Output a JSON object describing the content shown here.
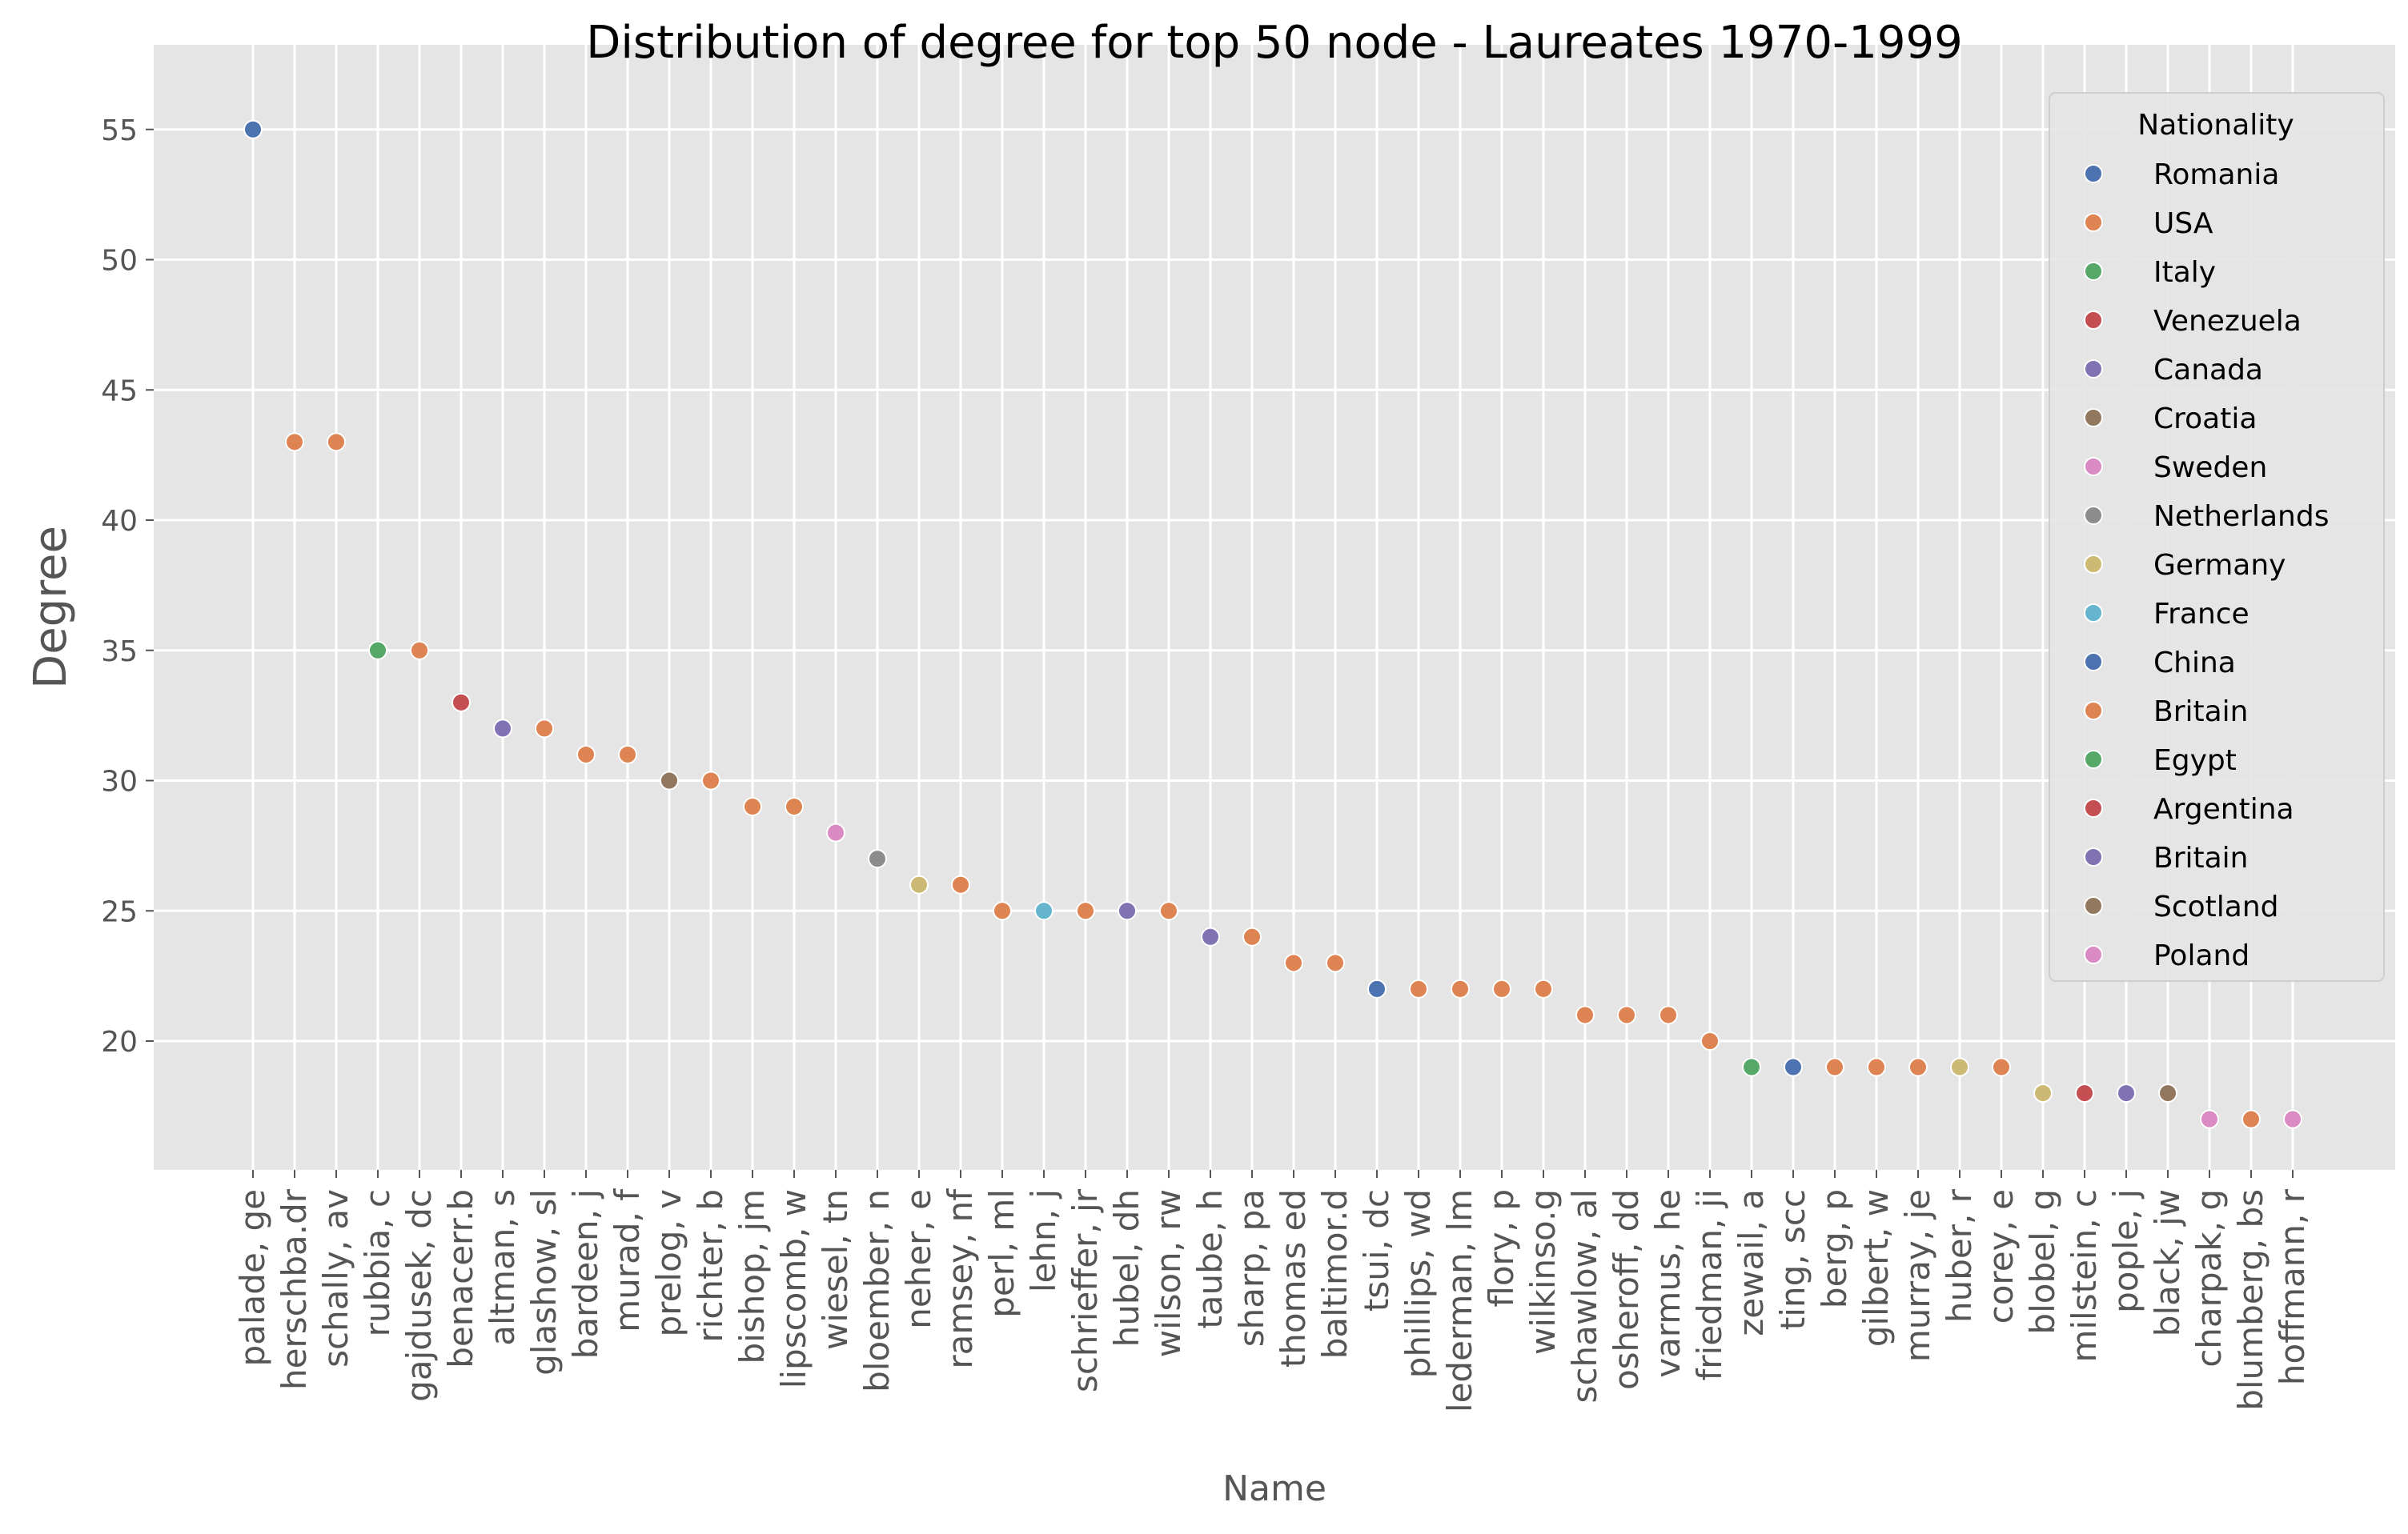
{
  "chart_data": {
    "type": "scatter",
    "title": "Distribution of degree for top 50 node - Laureates 1970-1999",
    "xlabel": "Name",
    "ylabel": "Degree",
    "ylim": [
      15,
      57
    ],
    "yticks": [
      20,
      25,
      30,
      35,
      40,
      45,
      50,
      55
    ],
    "grid": true,
    "legend": {
      "title": "Nationality",
      "placement": "top-right",
      "entries": [
        {
          "name": "Romania",
          "color": "#4c72b0"
        },
        {
          "name": "USA",
          "color": "#dd8452"
        },
        {
          "name": "Italy",
          "color": "#55a868"
        },
        {
          "name": "Venezuela",
          "color": "#c44e52"
        },
        {
          "name": "Canada",
          "color": "#8172b3"
        },
        {
          "name": "Croatia",
          "color": "#937860"
        },
        {
          "name": "Sweden",
          "color": "#da8bc3"
        },
        {
          "name": "Netherlands",
          "color": "#8c8c8c"
        },
        {
          "name": "Germany",
          "color": "#ccb974"
        },
        {
          "name": "France",
          "color": "#64b5cd"
        },
        {
          "name": "China",
          "color": "#4c72b0"
        },
        {
          "name": "Britain",
          "color": "#dd8452"
        },
        {
          "name": "Egypt",
          "color": "#55a868"
        },
        {
          "name": "Argentina",
          "color": "#c44e52"
        },
        {
          "name": "Britain",
          "color": "#8172b3"
        },
        {
          "name": "Scotland",
          "color": "#937860"
        },
        {
          "name": "Poland",
          "color": "#da8bc3"
        }
      ]
    },
    "points": [
      {
        "name": "palade, ge",
        "degree": 55,
        "nationality": 0
      },
      {
        "name": "herschba.dr",
        "degree": 43,
        "nationality": 1
      },
      {
        "name": "schally, av",
        "degree": 43,
        "nationality": 1
      },
      {
        "name": "rubbia, c",
        "degree": 35,
        "nationality": 2
      },
      {
        "name": "gajdusek, dc",
        "degree": 35,
        "nationality": 1
      },
      {
        "name": "benacerr.b",
        "degree": 33,
        "nationality": 3
      },
      {
        "name": "altman, s",
        "degree": 32,
        "nationality": 4
      },
      {
        "name": "glashow, sl",
        "degree": 32,
        "nationality": 1
      },
      {
        "name": "bardeen, j",
        "degree": 31,
        "nationality": 1
      },
      {
        "name": "murad, f",
        "degree": 31,
        "nationality": 1
      },
      {
        "name": "prelog, v",
        "degree": 30,
        "nationality": 5
      },
      {
        "name": "richter, b",
        "degree": 30,
        "nationality": 1
      },
      {
        "name": "bishop, jm",
        "degree": 29,
        "nationality": 1
      },
      {
        "name": "lipscomb, w",
        "degree": 29,
        "nationality": 1
      },
      {
        "name": "wiesel, tn",
        "degree": 28,
        "nationality": 6
      },
      {
        "name": "bloember, n",
        "degree": 27,
        "nationality": 7
      },
      {
        "name": "neher, e",
        "degree": 26,
        "nationality": 8
      },
      {
        "name": "ramsey, nf",
        "degree": 26,
        "nationality": 1
      },
      {
        "name": "perl, ml",
        "degree": 25,
        "nationality": 1
      },
      {
        "name": "lehn, j",
        "degree": 25,
        "nationality": 9
      },
      {
        "name": "schrieffer, jr",
        "degree": 25,
        "nationality": 1
      },
      {
        "name": "hubel, dh",
        "degree": 25,
        "nationality": 4
      },
      {
        "name": "wilson, rw",
        "degree": 25,
        "nationality": 1
      },
      {
        "name": "taube, h",
        "degree": 24,
        "nationality": 4
      },
      {
        "name": "sharp, pa",
        "degree": 24,
        "nationality": 1
      },
      {
        "name": "thomas ed",
        "degree": 23,
        "nationality": 1
      },
      {
        "name": "baltimor.d",
        "degree": 23,
        "nationality": 1
      },
      {
        "name": "tsui, dc",
        "degree": 22,
        "nationality": 10
      },
      {
        "name": "phillips, wd",
        "degree": 22,
        "nationality": 1
      },
      {
        "name": "lederman, lm",
        "degree": 22,
        "nationality": 1
      },
      {
        "name": "flory, p",
        "degree": 22,
        "nationality": 1
      },
      {
        "name": "wilkinso.g",
        "degree": 22,
        "nationality": 11
      },
      {
        "name": "schawlow, al",
        "degree": 21,
        "nationality": 1
      },
      {
        "name": "osheroff, dd",
        "degree": 21,
        "nationality": 1
      },
      {
        "name": "varmus, he",
        "degree": 21,
        "nationality": 1
      },
      {
        "name": "friedman, ji",
        "degree": 20,
        "nationality": 1
      },
      {
        "name": "zewail, a",
        "degree": 19,
        "nationality": 12
      },
      {
        "name": "ting, scc",
        "degree": 19,
        "nationality": 0
      },
      {
        "name": "berg, p",
        "degree": 19,
        "nationality": 1
      },
      {
        "name": "gilbert, w",
        "degree": 19,
        "nationality": 1
      },
      {
        "name": "murray, je",
        "degree": 19,
        "nationality": 1
      },
      {
        "name": "huber, r",
        "degree": 19,
        "nationality": 8
      },
      {
        "name": "corey, e",
        "degree": 19,
        "nationality": 1
      },
      {
        "name": "blobel, g",
        "degree": 18,
        "nationality": 8
      },
      {
        "name": "milstein, c",
        "degree": 18,
        "nationality": 13
      },
      {
        "name": "pople, j",
        "degree": 18,
        "nationality": 14
      },
      {
        "name": "black, jw",
        "degree": 18,
        "nationality": 15
      },
      {
        "name": "charpak, g",
        "degree": 17,
        "nationality": 16
      },
      {
        "name": "blumberg, bs",
        "degree": 17,
        "nationality": 1
      },
      {
        "name": "hoffmann, r",
        "degree": 17,
        "nationality": 16
      }
    ]
  }
}
